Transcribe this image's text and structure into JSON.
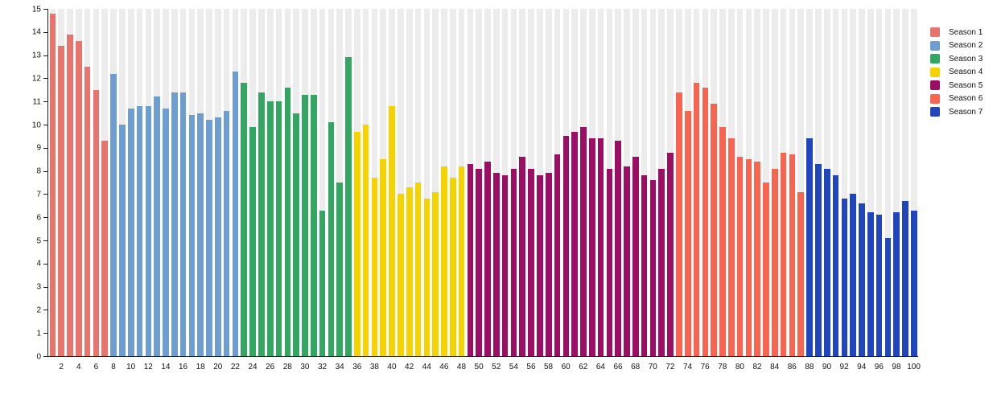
{
  "chart_data": {
    "type": "bar",
    "title": "",
    "xlabel": "",
    "ylabel": "",
    "ylim": [
      0,
      15
    ],
    "y_ticks": [
      0,
      1,
      2,
      3,
      4,
      5,
      6,
      7,
      8,
      9,
      10,
      11,
      12,
      13,
      14,
      15
    ],
    "x_ticks": [
      2,
      4,
      6,
      8,
      10,
      12,
      14,
      16,
      18,
      20,
      22,
      24,
      26,
      28,
      30,
      32,
      34,
      36,
      38,
      40,
      42,
      44,
      46,
      48,
      50,
      52,
      54,
      56,
      58,
      60,
      62,
      64,
      66,
      68,
      70,
      72,
      74,
      76,
      78,
      80,
      82,
      84,
      86,
      88,
      90,
      92,
      94,
      96,
      98,
      100
    ],
    "x_range": [
      1,
      100
    ],
    "grid": "off",
    "plot_stripe_color": "#ececec",
    "axis_color": "#1a1a1a",
    "legend_position": "right",
    "series": [
      {
        "name": "Season 1",
        "color": "#e8756d",
        "episode_start": 1,
        "values": [
          14.8,
          13.4,
          13.9,
          13.6,
          12.5,
          11.5,
          9.3
        ]
      },
      {
        "name": "Season 2",
        "color": "#6d9dd1",
        "episode_start": 8,
        "values": [
          12.2,
          10.0,
          10.7,
          10.8,
          10.8,
          11.2,
          10.7,
          11.4,
          11.4,
          10.4,
          10.5,
          10.2,
          10.3,
          10.6,
          12.3
        ]
      },
      {
        "name": "Season 3",
        "color": "#33a761",
        "episode_start": 23,
        "values": [
          11.8,
          9.9,
          11.4,
          11.0,
          11.0,
          11.6,
          10.5,
          11.3,
          11.3,
          6.3,
          10.1,
          7.5,
          12.9
        ]
      },
      {
        "name": "Season 4",
        "color": "#f5d300",
        "episode_start": 36,
        "values": [
          9.7,
          10.0,
          7.7,
          8.5,
          10.8,
          7.0,
          7.3,
          7.5,
          6.8,
          7.1,
          8.2,
          7.7,
          8.2
        ]
      },
      {
        "name": "Season 5",
        "color": "#9b0e63",
        "episode_start": 49,
        "values": [
          8.3,
          8.1,
          8.4,
          7.9,
          7.8,
          8.1,
          8.6,
          8.1,
          7.8,
          7.9,
          8.7,
          9.5,
          9.7,
          9.9,
          9.4,
          9.4,
          8.1,
          9.3,
          8.2,
          8.6,
          7.8,
          7.6,
          8.1,
          8.8
        ]
      },
      {
        "name": "Season 6",
        "color": "#f96450",
        "episode_start": 73,
        "values": [
          11.4,
          10.6,
          11.8,
          11.6,
          10.9,
          9.9,
          9.4,
          8.6,
          8.5,
          8.4,
          7.5,
          8.1,
          8.8,
          8.7,
          7.1
        ]
      },
      {
        "name": "Season 7",
        "color": "#2145bd",
        "episode_start": 88,
        "values": [
          9.4,
          8.3,
          8.1,
          7.8,
          6.8,
          7.0,
          6.6,
          6.2,
          6.1,
          5.1,
          6.2,
          6.7,
          6.3
        ]
      }
    ]
  },
  "legend": {
    "items": [
      {
        "label": "Season 1",
        "color": "#e8756d"
      },
      {
        "label": "Season 2",
        "color": "#6d9dd1"
      },
      {
        "label": "Season 3",
        "color": "#33a761"
      },
      {
        "label": "Season 4",
        "color": "#f5d300"
      },
      {
        "label": "Season 5",
        "color": "#9b0e63"
      },
      {
        "label": "Season 6",
        "color": "#f96450"
      },
      {
        "label": "Season 7",
        "color": "#2145bd"
      }
    ]
  }
}
